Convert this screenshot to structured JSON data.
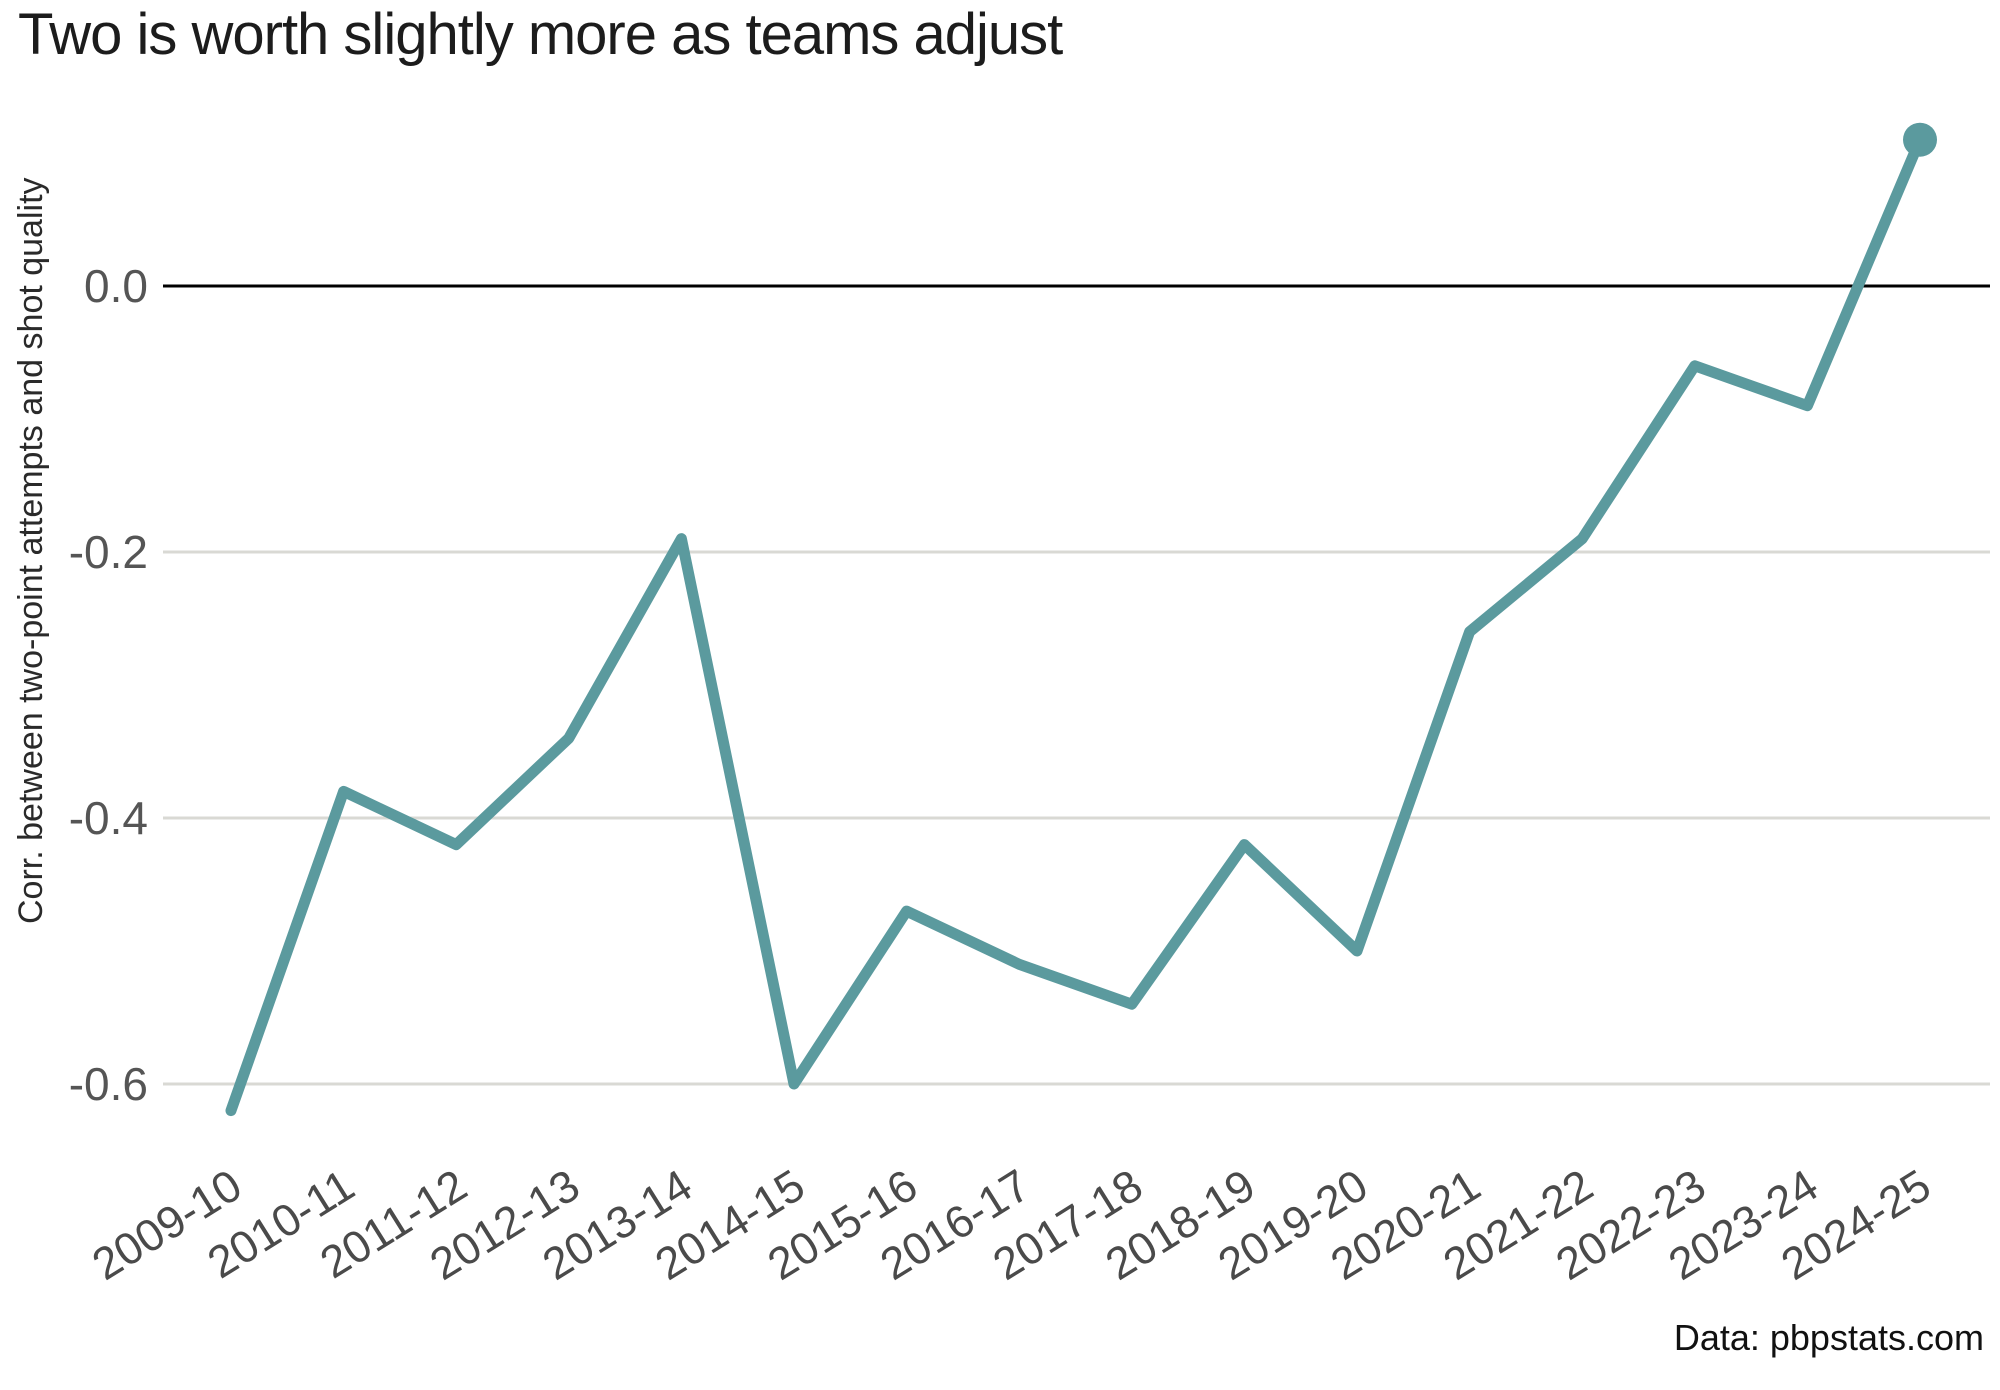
{
  "chart": {
    "title": "Two is worth slightly more as teams adjust",
    "ylabel": "Corr. between two-point attempts and shot quality",
    "source_note": "Data: pbpstats.com"
  },
  "chart_data": {
    "type": "line",
    "title": "Two is worth slightly more as teams adjust",
    "xlabel": "",
    "ylabel": "Corr. between two-point attempts and shot quality",
    "source_note": "Data: pbpstats.com",
    "categories": [
      "2009-10",
      "2010-11",
      "2011-12",
      "2012-13",
      "2013-14",
      "2014-15",
      "2015-16",
      "2016-17",
      "2017-18",
      "2018-19",
      "2019-20",
      "2020-21",
      "2021-22",
      "2022-23",
      "2023-24",
      "2024-25"
    ],
    "series": [
      {
        "name": "Correlation between two-point attempts and shot quality",
        "values": [
          -0.62,
          -0.38,
          -0.42,
          -0.34,
          -0.19,
          -0.6,
          -0.47,
          -0.51,
          -0.54,
          -0.42,
          -0.5,
          -0.26,
          -0.19,
          -0.06,
          -0.09,
          0.11
        ]
      }
    ],
    "yticks": [
      0.0,
      -0.2,
      -0.4,
      -0.6
    ],
    "ytick_labels": [
      "0.0",
      "-0.2",
      "-0.4",
      "-0.6"
    ],
    "ylim": [
      -0.68,
      0.15
    ],
    "grid": "horizontal",
    "zero_line": true,
    "legend_position": "none",
    "marker_on_last_point_only": true,
    "colors": {
      "line": "#5b9a9e",
      "marker": "#5b9a9e",
      "grid": "#d9d9d4",
      "zero_line": "#000000",
      "y_tick_label": "#555555",
      "x_tick_label": "#4a4a4a",
      "title": "#1c1c1c"
    }
  }
}
